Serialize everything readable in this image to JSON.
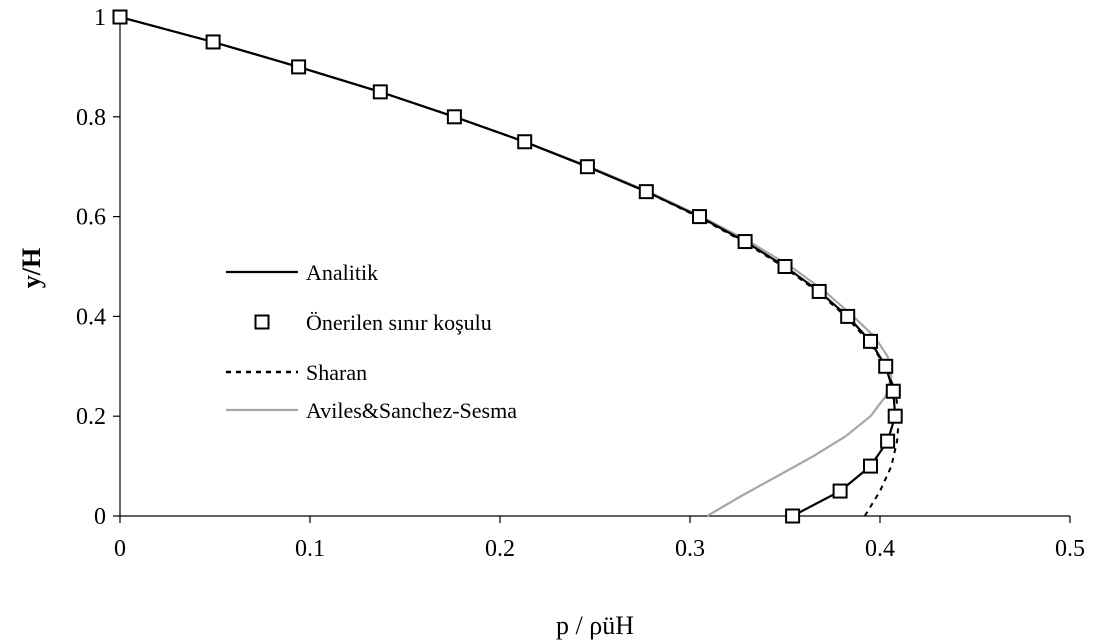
{
  "chart_data": {
    "type": "line",
    "xlabel": "p / ρüH",
    "ylabel": "y/H",
    "xlim": [
      0,
      0.5
    ],
    "ylim": [
      0,
      1
    ],
    "xticks": [
      0,
      0.1,
      0.2,
      0.3,
      0.4,
      0.5
    ],
    "xtick_labels": [
      "0",
      "0.1",
      "0.2",
      "0.3",
      "0.4",
      "0.5"
    ],
    "yticks": [
      0,
      0.2,
      0.4,
      0.6,
      0.8,
      1
    ],
    "ytick_labels": [
      "0",
      "0.2",
      "0.4",
      "0.6",
      "0.8",
      "1"
    ],
    "grid": false,
    "legend_position": "center-left",
    "series": [
      {
        "name": "Analitik",
        "style": "solid",
        "color": "#000000",
        "marker": "none",
        "x": [
          0.354,
          0.379,
          0.395,
          0.404,
          0.408,
          0.407,
          0.403,
          0.395,
          0.383,
          0.368,
          0.35,
          0.329,
          0.305,
          0.277,
          0.246,
          0.213,
          0.176,
          0.137,
          0.094,
          0.049,
          0.0
        ],
        "y": [
          0.0,
          0.05,
          0.1,
          0.15,
          0.2,
          0.25,
          0.3,
          0.35,
          0.4,
          0.45,
          0.5,
          0.55,
          0.6,
          0.65,
          0.7,
          0.75,
          0.8,
          0.85,
          0.9,
          0.95,
          1.0
        ]
      },
      {
        "name": "Önerilen sınır koşulu",
        "style": "none",
        "color": "#000000",
        "marker": "square",
        "x": [
          0.354,
          0.379,
          0.395,
          0.404,
          0.408,
          0.407,
          0.403,
          0.395,
          0.383,
          0.368,
          0.35,
          0.329,
          0.305,
          0.277,
          0.246,
          0.213,
          0.176,
          0.137,
          0.094,
          0.049,
          0.0
        ],
        "y": [
          0.0,
          0.05,
          0.1,
          0.15,
          0.2,
          0.25,
          0.3,
          0.35,
          0.4,
          0.45,
          0.5,
          0.55,
          0.6,
          0.65,
          0.7,
          0.75,
          0.8,
          0.85,
          0.9,
          0.95,
          1.0
        ]
      },
      {
        "name": "Sharan",
        "style": "dashed",
        "color": "#000000",
        "marker": "none",
        "x": [
          0.392,
          0.4,
          0.406,
          0.409,
          0.41,
          0.408,
          0.403,
          0.394,
          0.382,
          0.367,
          0.349,
          0.328,
          0.304,
          0.277,
          0.246,
          0.213,
          0.176,
          0.137,
          0.094,
          0.049,
          0.0
        ],
        "y": [
          0.0,
          0.05,
          0.1,
          0.15,
          0.2,
          0.25,
          0.3,
          0.35,
          0.4,
          0.45,
          0.5,
          0.55,
          0.6,
          0.65,
          0.7,
          0.75,
          0.8,
          0.85,
          0.9,
          0.95,
          1.0
        ]
      },
      {
        "name": "Aviles&Sanchez-Sesma",
        "style": "solid",
        "color": "#a6a6a6",
        "marker": "none",
        "x": [
          0.309,
          0.327,
          0.346,
          0.365,
          0.382,
          0.395,
          0.403,
          0.406,
          0.404,
          0.397,
          0.386,
          0.371,
          0.353,
          0.331,
          0.306,
          0.278,
          0.247,
          0.213,
          0.176,
          0.137,
          0.094,
          0.049,
          0.0
        ],
        "y": [
          0.0,
          0.04,
          0.08,
          0.12,
          0.16,
          0.2,
          0.24,
          0.28,
          0.32,
          0.36,
          0.4,
          0.45,
          0.5,
          0.55,
          0.6,
          0.65,
          0.7,
          0.75,
          0.8,
          0.85,
          0.9,
          0.95,
          1.0
        ]
      }
    ]
  }
}
